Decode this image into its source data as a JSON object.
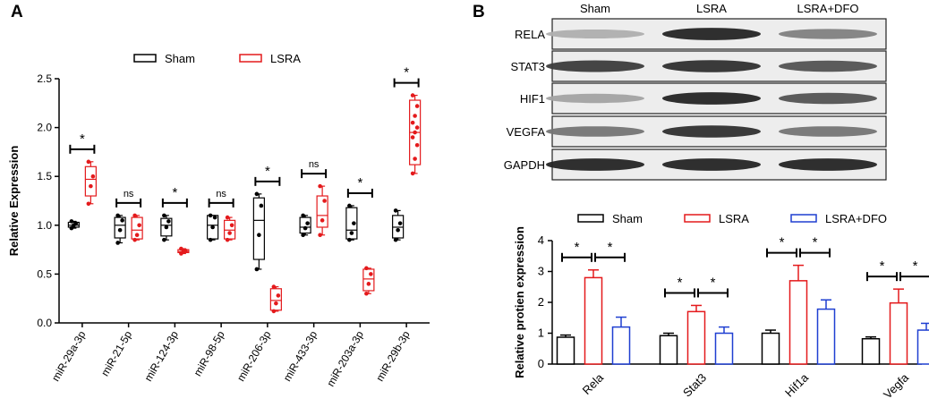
{
  "chart_data": [
    {
      "type": "box",
      "panel_label": "A",
      "ylabel": "Relative Expression",
      "ylim": [
        0,
        2.5
      ],
      "yticks": [
        "0.0",
        "0.5",
        "1.0",
        "1.5",
        "2.0",
        "2.5"
      ],
      "categories": [
        "miR-29a-3p",
        "miR-21-5p",
        "miR-124-3p",
        "miR-98-5p",
        "miR-206-3p",
        "miR-433-3p",
        "miR-203a-3p",
        "miR-29b-3p"
      ],
      "legend": [
        "Sham",
        "LSRA"
      ],
      "colors": {
        "Sham": "#000000",
        "LSRA": "#e41a1c"
      },
      "significance": [
        "*",
        "ns",
        "*",
        "ns",
        "*",
        "ns",
        "*",
        "*"
      ],
      "series": [
        {
          "name": "Sham",
          "boxes": [
            {
              "min": 0.97,
              "q1": 0.98,
              "median": 1.0,
              "q3": 1.03,
              "max": 1.04,
              "points": [
                0.97,
                1.0,
                1.02,
                1.04
              ]
            },
            {
              "min": 0.82,
              "q1": 0.87,
              "median": 1.0,
              "q3": 1.08,
              "max": 1.1,
              "points": [
                0.82,
                0.95,
                1.05,
                1.1
              ]
            },
            {
              "min": 0.85,
              "q1": 0.89,
              "median": 1.0,
              "q3": 1.07,
              "max": 1.1,
              "points": [
                0.85,
                0.98,
                1.04,
                1.1
              ]
            },
            {
              "min": 0.85,
              "q1": 0.86,
              "median": 1.0,
              "q3": 1.1,
              "max": 1.1,
              "points": [
                0.85,
                0.98,
                1.08,
                1.1
              ]
            },
            {
              "min": 0.55,
              "q1": 0.65,
              "median": 1.05,
              "q3": 1.28,
              "max": 1.32,
              "points": [
                0.55,
                0.9,
                1.2,
                1.32
              ]
            },
            {
              "min": 0.9,
              "q1": 0.92,
              "median": 0.98,
              "q3": 1.08,
              "max": 1.1,
              "points": [
                0.9,
                0.97,
                1.02,
                1.1
              ]
            },
            {
              "min": 0.85,
              "q1": 0.86,
              "median": 0.95,
              "q3": 1.18,
              "max": 1.2,
              "points": [
                0.85,
                0.92,
                1.02,
                1.2
              ]
            },
            {
              "min": 0.85,
              "q1": 0.87,
              "median": 0.98,
              "q3": 1.1,
              "max": 1.15,
              "points": [
                0.85,
                0.95,
                1.02,
                1.15
              ]
            }
          ]
        },
        {
          "name": "LSRA",
          "boxes": [
            {
              "min": 1.22,
              "q1": 1.3,
              "median": 1.47,
              "q3": 1.6,
              "max": 1.65,
              "points": [
                1.22,
                1.4,
                1.5,
                1.65
              ]
            },
            {
              "min": 0.85,
              "q1": 0.86,
              "median": 0.95,
              "q3": 1.08,
              "max": 1.1,
              "points": [
                0.85,
                0.9,
                1.0,
                1.1
              ]
            },
            {
              "min": 0.71,
              "q1": 0.72,
              "median": 0.73,
              "q3": 0.75,
              "max": 0.76,
              "points": [
                0.71,
                0.73,
                0.74,
                0.76
              ]
            },
            {
              "min": 0.85,
              "q1": 0.86,
              "median": 0.95,
              "q3": 1.05,
              "max": 1.08,
              "points": [
                0.85,
                0.92,
                1.0,
                1.08
              ]
            },
            {
              "min": 0.12,
              "q1": 0.13,
              "median": 0.23,
              "q3": 0.35,
              "max": 0.37,
              "points": [
                0.12,
                0.2,
                0.28,
                0.37
              ]
            },
            {
              "min": 0.9,
              "q1": 0.98,
              "median": 1.1,
              "q3": 1.3,
              "max": 1.4,
              "points": [
                0.9,
                1.05,
                1.25,
                1.4
              ]
            },
            {
              "min": 0.3,
              "q1": 0.33,
              "median": 0.45,
              "q3": 0.55,
              "max": 0.56,
              "points": [
                0.3,
                0.4,
                0.5,
                0.56
              ]
            },
            {
              "min": 1.53,
              "q1": 1.62,
              "median": 1.95,
              "q3": 2.28,
              "max": 2.33,
              "points": [
                1.53,
                1.68,
                1.82,
                1.9,
                1.95,
                2.0,
                2.05,
                2.12,
                2.22,
                2.33
              ]
            }
          ]
        }
      ]
    },
    {
      "type": "western-blot",
      "panel_label": "B",
      "lanes": [
        "Sham",
        "LSRA",
        "LSRA+DFO"
      ],
      "rows": [
        {
          "label": "RELA",
          "intensity": [
            0.35,
            0.95,
            0.55
          ]
        },
        {
          "label": "STAT3",
          "intensity": [
            0.85,
            0.9,
            0.75
          ]
        },
        {
          "label": "HIF1",
          "intensity": [
            0.4,
            0.95,
            0.75
          ]
        },
        {
          "label": "VEGFA",
          "intensity": [
            0.6,
            0.9,
            0.6
          ]
        },
        {
          "label": "GAPDH",
          "intensity": [
            0.95,
            0.95,
            0.95
          ]
        }
      ]
    },
    {
      "type": "bar",
      "ylabel": "Relative protien expression",
      "ylim": [
        0,
        4
      ],
      "yticks": [
        "0",
        "1",
        "2",
        "3",
        "4"
      ],
      "categories": [
        "Rela",
        "Stat3",
        "Hif1a",
        "Vegfa"
      ],
      "legend": [
        "Sham",
        "LSRA",
        "LSRA+DFO"
      ],
      "colors": {
        "Sham": "#000000",
        "LSRA": "#e41a1c",
        "LSRA+DFO": "#1f3fd1"
      },
      "significance": [
        "*",
        "*"
      ],
      "series": [
        {
          "name": "Sham",
          "values": [
            0.87,
            0.92,
            1.0,
            0.82
          ],
          "errors": [
            0.07,
            0.08,
            0.1,
            0.06
          ]
        },
        {
          "name": "LSRA",
          "values": [
            2.8,
            1.7,
            2.7,
            1.98
          ],
          "errors": [
            0.25,
            0.2,
            0.5,
            0.45
          ]
        },
        {
          "name": "LSRA+DFO",
          "values": [
            1.2,
            1.0,
            1.78,
            1.1
          ],
          "errors": [
            0.32,
            0.2,
            0.3,
            0.22
          ]
        }
      ]
    }
  ]
}
